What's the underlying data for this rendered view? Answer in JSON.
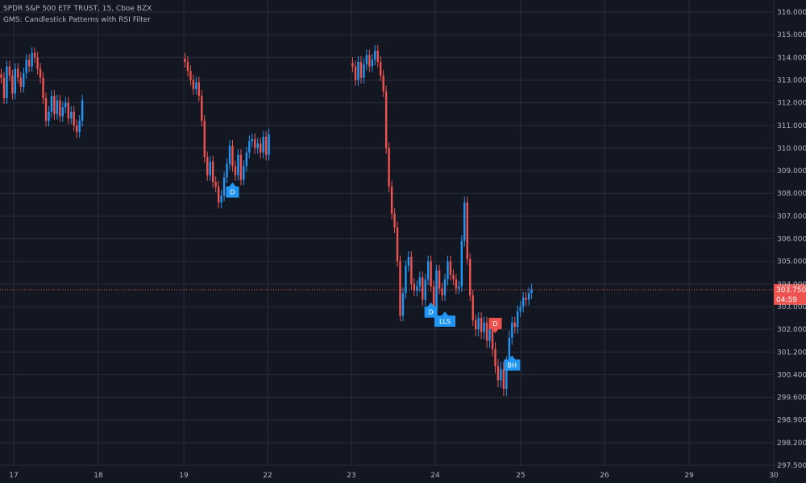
{
  "legend": {
    "symbol_line": "SPDR S&P 500 ETF TRUST, 15, Cboe BZX",
    "indicator_line": "GMS: Candlestick Patterns with RSI Filter"
  },
  "colors": {
    "background": "#131722",
    "grid": "#2a2e39",
    "up": "#2196f3",
    "down": "#ef5350",
    "axis_text": "#b2b5be",
    "price_line": "#ef5350",
    "signal_up": "#2196f3",
    "signal_down": "#ef5350"
  },
  "current_price": {
    "value": 303.75,
    "label": "303.750",
    "countdown": "04:59"
  },
  "chart_data": {
    "type": "candlestick",
    "y_range": [
      297.5,
      316.3
    ],
    "y_ticks": [
      "316.0000",
      "315.0000",
      "314.0000",
      "313.0000",
      "312.0000",
      "311.0000",
      "310.0000",
      "309.0000",
      "308.0000",
      "307.0000",
      "306.0000",
      "305.0000",
      "304.0000",
      "303.0000",
      "302.0000",
      "301.2000",
      "300.4000",
      "299.6000",
      "298.9000",
      "298.2000",
      "297.5000"
    ],
    "x_ticks": [
      "17",
      "18",
      "19",
      "22",
      "23",
      "24",
      "25",
      "26",
      "29",
      "30"
    ],
    "segments": [
      {
        "day": "17",
        "closes": [
          313.1,
          312.2,
          313.6,
          313.2,
          312.4,
          313.5,
          313.1,
          312.7,
          313.3,
          313.9,
          313.6,
          314.2,
          314.0,
          313.5,
          313.1,
          312.2,
          311.2,
          311.6,
          312.3,
          311.5,
          312.1,
          311.4,
          311.8,
          312.0,
          311.3,
          311.6,
          311.0,
          310.7,
          311.2,
          312.1
        ]
      },
      {
        "day": "19",
        "closes": [
          313.8,
          313.4,
          313.0,
          312.6,
          312.9,
          312.3,
          311.2,
          309.6,
          308.8,
          309.4,
          308.5,
          308.3,
          307.6,
          307.9,
          308.7,
          309.3,
          310.1,
          309.2,
          308.8,
          309.7,
          308.6,
          309.2,
          309.8,
          310.3,
          310.4,
          310.0,
          310.2,
          309.8,
          310.5,
          309.7,
          310.6
        ]
      },
      {
        "day": "23",
        "closes": [
          313.6,
          313.0,
          313.8,
          313.1,
          313.7,
          314.1,
          313.6,
          313.9,
          314.3,
          313.8,
          313.2,
          312.5,
          310.0,
          308.3,
          307.1,
          306.5,
          305.0,
          302.6,
          303.6,
          304.8,
          305.2,
          304.0,
          303.7,
          303.9,
          304.3,
          303.3,
          304.2,
          305.0,
          303.9,
          302.8,
          304.6,
          303.8,
          303.5,
          304.2,
          305.0,
          304.4,
          304.2,
          303.8,
          303.9,
          305.9,
          307.6,
          305.1,
          303.5,
          302.4,
          302.0,
          302.5,
          301.9,
          302.3,
          301.6,
          302.0,
          301.3,
          300.7,
          300.2,
          300.6,
          299.9,
          300.8,
          301.7,
          302.3,
          302.1,
          302.8,
          303.0,
          303.4,
          303.3,
          303.6,
          303.75
        ]
      }
    ],
    "signals": [
      {
        "label": "D",
        "direction": "up",
        "index": 47
      },
      {
        "label": "D",
        "direction": "up",
        "index": 89
      },
      {
        "label": "LLS",
        "direction": "up",
        "index": 94
      },
      {
        "label": "D",
        "direction": "down",
        "index": 112
      },
      {
        "label": "BH",
        "direction": "up",
        "index": 118
      }
    ]
  }
}
